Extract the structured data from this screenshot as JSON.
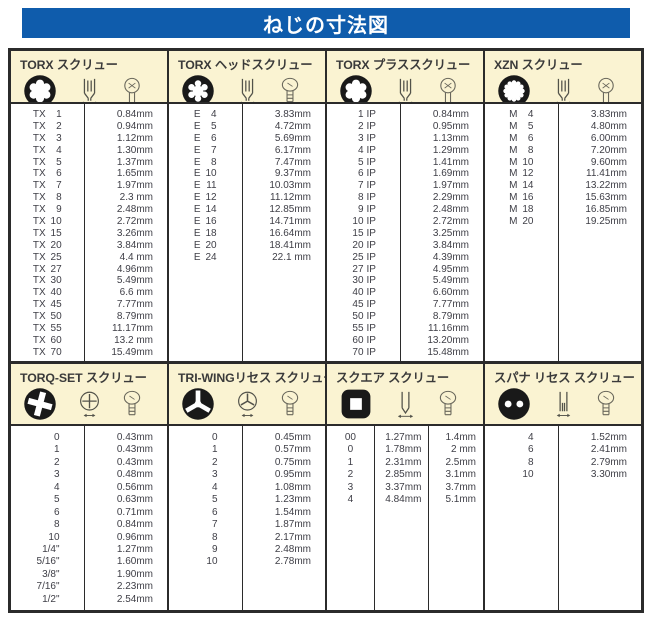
{
  "page": {
    "title": "ねじの寸法図"
  },
  "colors": {
    "title_bar_bg": "#0f5cac",
    "title_text": "#ffffff",
    "section_header_bg": "#faf3d2",
    "border": "#2b2b2b",
    "text": "#3e3e46",
    "symbol": "#191919"
  },
  "sections": [
    {
      "id": "torx",
      "title": "TORX スクリュー",
      "label_prefix": "TX",
      "icons": [
        "torx-bit-icon",
        "bit-side-view-icon",
        "screw-head-icon"
      ],
      "rows": [
        [
          "1",
          "0.84mm"
        ],
        [
          "2",
          "0.94mm"
        ],
        [
          "3",
          "1.12mm"
        ],
        [
          "4",
          "1.30mm"
        ],
        [
          "5",
          "1.37mm"
        ],
        [
          "6",
          "1.65mm"
        ],
        [
          "7",
          "1.97mm"
        ],
        [
          "8",
          "2.3 mm"
        ],
        [
          "9",
          "2.48mm"
        ],
        [
          "10",
          "2.72mm"
        ],
        [
          "15",
          "3.26mm"
        ],
        [
          "20",
          "3.84mm"
        ],
        [
          "25",
          "4.4 mm"
        ],
        [
          "27",
          "4.96mm"
        ],
        [
          "30",
          "5.49mm"
        ],
        [
          "40",
          "6.6 mm"
        ],
        [
          "45",
          "7.77mm"
        ],
        [
          "50",
          "8.79mm"
        ],
        [
          "55",
          "11.17mm"
        ],
        [
          "60",
          "13.2 mm"
        ],
        [
          "70",
          "15.49mm"
        ]
      ]
    },
    {
      "id": "torx-head",
      "title": "TORX ヘッドスクリュー",
      "label_prefix": "E",
      "icons": [
        "e-torx-socket-icon",
        "bit-side-view-icon",
        "screw-head-icon"
      ],
      "rows": [
        [
          "4",
          "3.83mm"
        ],
        [
          "5",
          "4.72mm"
        ],
        [
          "6",
          "5.69mm"
        ],
        [
          "7",
          "6.17mm"
        ],
        [
          "8",
          "7.47mm"
        ],
        [
          "10",
          "9.37mm"
        ],
        [
          "11",
          "10.03mm"
        ],
        [
          "12",
          "11.12mm"
        ],
        [
          "14",
          "12.85mm"
        ],
        [
          "16",
          "14.71mm"
        ],
        [
          "18",
          "16.64mm"
        ],
        [
          "20",
          "18.41mm"
        ],
        [
          "24",
          "22.1 mm"
        ]
      ]
    },
    {
      "id": "torx-plus",
      "title": "TORX プラススクリュー",
      "label_suffix": "IP",
      "icons": [
        "torx-plus-bit-icon",
        "bit-side-view-icon",
        "screw-head-icon"
      ],
      "rows": [
        [
          "1",
          "0.84mm"
        ],
        [
          "2",
          "0.95mm"
        ],
        [
          "3",
          "1.13mm"
        ],
        [
          "4",
          "1.29mm"
        ],
        [
          "5",
          "1.41mm"
        ],
        [
          "6",
          "1.69mm"
        ],
        [
          "7",
          "1.97mm"
        ],
        [
          "8",
          "2.29mm"
        ],
        [
          "9",
          "2.48mm"
        ],
        [
          "10",
          "2.72mm"
        ],
        [
          "15",
          "3.25mm"
        ],
        [
          "20",
          "3.84mm"
        ],
        [
          "25",
          "4.39mm"
        ],
        [
          "27",
          "4.95mm"
        ],
        [
          "30",
          "5.49mm"
        ],
        [
          "40",
          "6.60mm"
        ],
        [
          "45",
          "7.77mm"
        ],
        [
          "50",
          "8.79mm"
        ],
        [
          "55",
          "11.16mm"
        ],
        [
          "60",
          "13.20mm"
        ],
        [
          "70",
          "15.48mm"
        ]
      ]
    },
    {
      "id": "xzn",
      "title": "XZN スクリュー",
      "label_prefix": "M",
      "icons": [
        "xzn-spline-icon",
        "bit-side-view-icon",
        "screw-head-icon"
      ],
      "rows": [
        [
          "4",
          "3.83mm"
        ],
        [
          "5",
          "4.80mm"
        ],
        [
          "6",
          "6.00mm"
        ],
        [
          "8",
          "7.20mm"
        ],
        [
          "10",
          "9.60mm"
        ],
        [
          "12",
          "11.41mm"
        ],
        [
          "14",
          "13.22mm"
        ],
        [
          "16",
          "15.63mm"
        ],
        [
          "18",
          "16.85mm"
        ],
        [
          "20",
          "19.25mm"
        ]
      ]
    },
    {
      "id": "torq-set",
      "title": "TORQ-SET スクリュー",
      "icons": [
        "torq-set-icon",
        "recess-top-view-icon",
        "screw-head-icon"
      ],
      "rows": [
        [
          "0",
          "0.43mm"
        ],
        [
          "1",
          "0.43mm"
        ],
        [
          "2",
          "0.43mm"
        ],
        [
          "3",
          "0.48mm"
        ],
        [
          "4",
          "0.56mm"
        ],
        [
          "5",
          "0.63mm"
        ],
        [
          "6",
          "0.71mm"
        ],
        [
          "8",
          "0.84mm"
        ],
        [
          "10",
          "0.96mm"
        ],
        [
          "1/4\"",
          "1.27mm"
        ],
        [
          "5/16\"",
          "1.60mm"
        ],
        [
          "3/8\"",
          "1.90mm"
        ],
        [
          "7/16\"",
          "2.23mm"
        ],
        [
          "1/2\"",
          "2.54mm"
        ]
      ]
    },
    {
      "id": "tri-wing",
      "title": "TRI-WINGリセス スクリュー",
      "icons": [
        "tri-wing-icon",
        "recess-top-view-icon",
        "screw-head-icon"
      ],
      "rows": [
        [
          "0",
          "0.45mm"
        ],
        [
          "1",
          "0.57mm"
        ],
        [
          "2",
          "0.75mm"
        ],
        [
          "3",
          "0.95mm"
        ],
        [
          "4",
          "1.08mm"
        ],
        [
          "5",
          "1.23mm"
        ],
        [
          "6",
          "1.54mm"
        ],
        [
          "7",
          "1.87mm"
        ],
        [
          "8",
          "2.17mm"
        ],
        [
          "9",
          "2.48mm"
        ],
        [
          "10",
          "2.78mm"
        ]
      ]
    },
    {
      "id": "square",
      "title": "スクエア スクリュー",
      "icons": [
        "square-recess-icon",
        "bit-tip-side-view-icon",
        "screw-head-icon"
      ],
      "rows": [
        [
          "00",
          "1.27mm",
          "1.4mm"
        ],
        [
          "0",
          "1.78mm",
          "2 mm"
        ],
        [
          "1",
          "2.31mm",
          "2.5mm"
        ],
        [
          "2",
          "2.85mm",
          "3.1mm"
        ],
        [
          "3",
          "3.37mm",
          "3.7mm"
        ],
        [
          "4",
          "4.84mm",
          "5.1mm"
        ]
      ]
    },
    {
      "id": "spanner",
      "title": "スパナ リセス スクリュー",
      "icons": [
        "spanner-recess-icon",
        "pin-side-view-icon",
        "screw-head-icon"
      ],
      "rows": [
        [
          "4",
          "1.52mm"
        ],
        [
          "6",
          "2.41mm"
        ],
        [
          "8",
          "2.79mm"
        ],
        [
          "10",
          "3.30mm"
        ]
      ]
    }
  ]
}
